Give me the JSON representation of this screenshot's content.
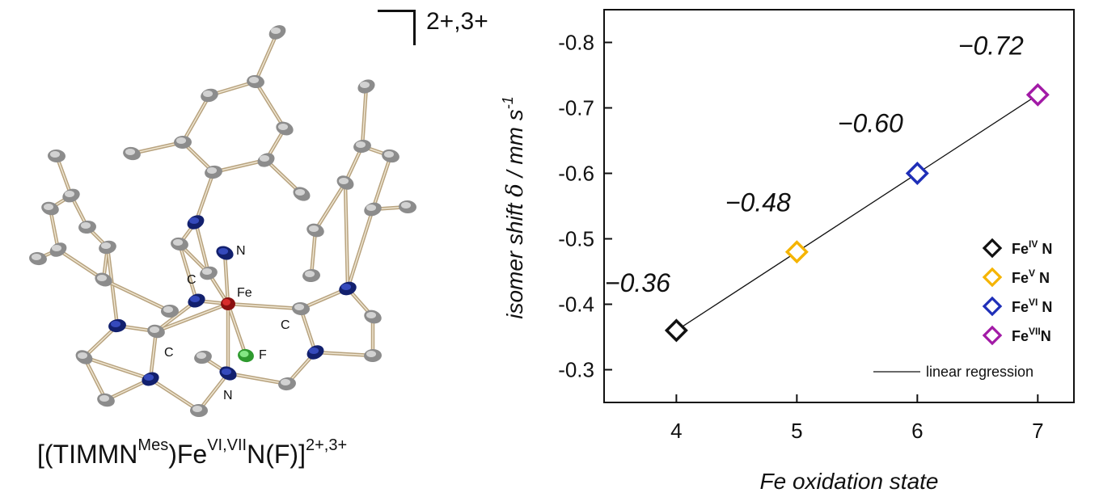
{
  "structure": {
    "charge_label": "2+,3+",
    "atom_labels": {
      "n_top": "N",
      "fe": "Fe",
      "c_left": "C",
      "c_right": "C",
      "c_bottom": "C",
      "f": "F",
      "n_bottom": "N"
    },
    "caption": {
      "open": "[(TIMMN",
      "mes": "Mes",
      "fe": ")Fe",
      "ox": "VI,VII",
      "nf": "N(F)]",
      "charge": "2+,3+"
    }
  },
  "chart_data": {
    "type": "scatter",
    "xlabel": "Fe oxidation state",
    "ylabel_main": "isomer shift ",
    "ylabel_delta": "δ",
    "ylabel_unit": " / mm s",
    "ylabel_exp": "-1",
    "x_ticks": [
      4,
      5,
      6,
      7
    ],
    "y_ticks": [
      -0.3,
      -0.4,
      -0.5,
      -0.6,
      -0.7,
      -0.8
    ],
    "y_tick_labels": [
      "-0.3",
      "-0.4",
      "-0.5",
      "-0.6",
      "-0.7",
      "-0.8"
    ],
    "xlim": [
      3.4,
      7.3
    ],
    "ylim": [
      -0.25,
      -0.85
    ],
    "y_inverted": true,
    "points": [
      {
        "x": 4,
        "y": -0.36,
        "label": "−0.36",
        "color": "#111111",
        "legend": "Fe",
        "sup": "IV",
        "suffix": " N"
      },
      {
        "x": 5,
        "y": -0.48,
        "label": "−0.48",
        "color": "#F5B400",
        "legend": "Fe",
        "sup": "V",
        "suffix": " N"
      },
      {
        "x": 6,
        "y": -0.6,
        "label": "−0.60",
        "color": "#1F2FB8",
        "legend": "Fe",
        "sup": "VI",
        "suffix": " N"
      },
      {
        "x": 7,
        "y": -0.72,
        "label": "−0.72",
        "color": "#A21AA6",
        "legend": "Fe",
        "sup": "VII",
        "suffix": "N"
      }
    ],
    "regression": {
      "label": "linear regression",
      "x": [
        4,
        7
      ],
      "y": [
        -0.36,
        -0.72
      ]
    },
    "legend_position": "bottom-right"
  }
}
